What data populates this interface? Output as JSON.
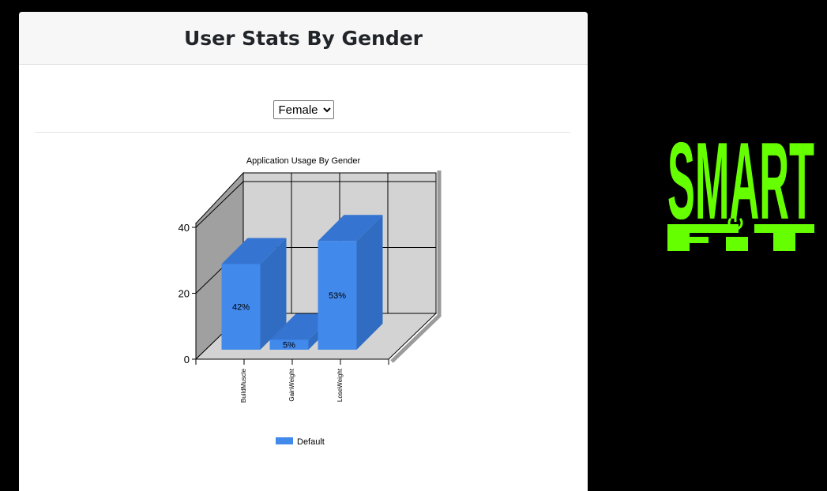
{
  "card": {
    "title": "User Stats By Gender"
  },
  "filter": {
    "selected": "Female"
  },
  "logo": {
    "text_top": "SMART",
    "text_bottom": "FIT",
    "color": "#66ff00"
  },
  "chart_data": {
    "type": "bar",
    "title": "Application Usage By Gender",
    "categories": [
      "BuildMuscle",
      "GainWeight",
      "LoseWeight"
    ],
    "series": [
      {
        "name": "Default",
        "values": [
          26,
          3,
          33
        ],
        "labels": [
          "42%",
          "5%",
          "53%"
        ],
        "color": "#4289ec"
      }
    ],
    "ylim": [
      0,
      40
    ],
    "yticks": [
      "0",
      "20",
      "40"
    ],
    "xlabel": "",
    "ylabel": "",
    "grid": true,
    "legend_position": "bottom",
    "style": "3d"
  }
}
